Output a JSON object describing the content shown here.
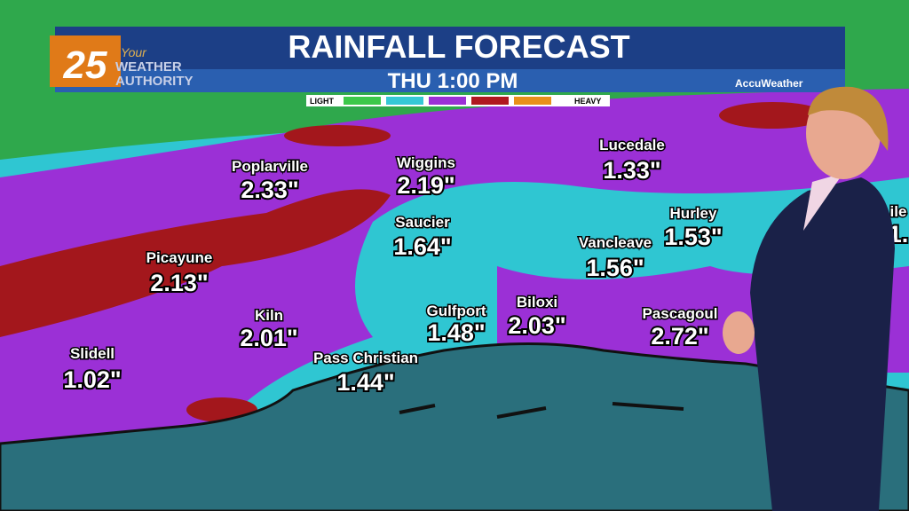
{
  "header": {
    "title": "RAINFALL FORECAST",
    "subtitle": "THU 1:00 PM",
    "logo": {
      "number": "25",
      "tagline": "Your",
      "line1": "WEATHER",
      "line2": "AUTHORITY"
    },
    "provider": "AccuWeather",
    "legend": {
      "low": "LIGHT",
      "high": "HEAVY"
    }
  },
  "cities": [
    {
      "name": "Poplarville",
      "amount": "2.33\""
    },
    {
      "name": "Wiggins",
      "amount": "2.19\""
    },
    {
      "name": "Lucedale",
      "amount": "1.33\""
    },
    {
      "name": "Saucier",
      "amount": "1.64\""
    },
    {
      "name": "Picayune",
      "amount": "2.13\""
    },
    {
      "name": "Hurley",
      "amount": "1.53\""
    },
    {
      "name": "Vancleave",
      "amount": "1.56\""
    },
    {
      "name": "Kiln",
      "amount": "2.01\""
    },
    {
      "name": "Gulfport",
      "amount": "1.48\""
    },
    {
      "name": "Biloxi",
      "amount": "2.03\""
    },
    {
      "name": "Pascagoul",
      "amount": "2.72\""
    },
    {
      "name": "Pass Christian",
      "amount": "1.44\""
    },
    {
      "name": "Slidell",
      "amount": "1.02\""
    },
    {
      "name": "ile",
      "amount": "1."
    }
  ]
}
